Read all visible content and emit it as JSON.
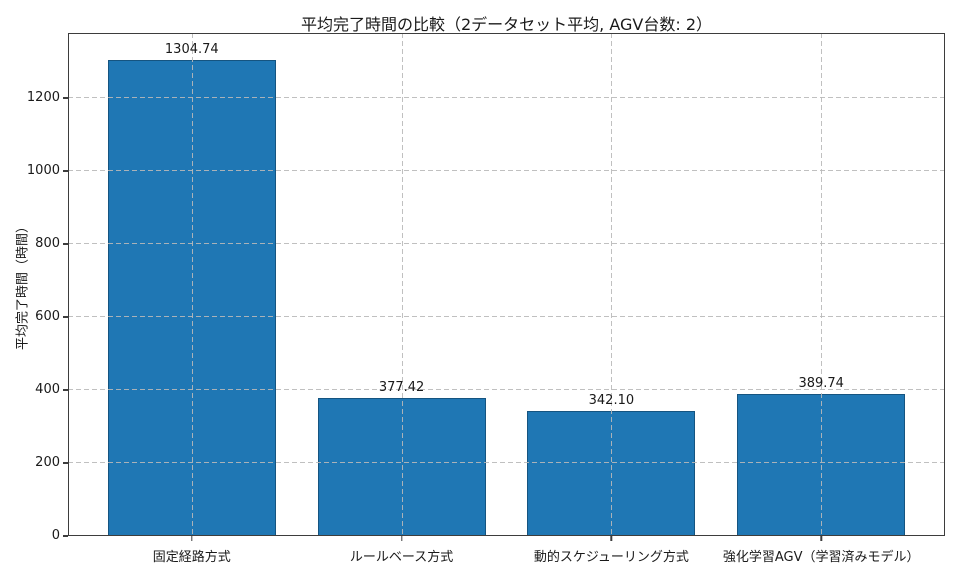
{
  "chart_data": {
    "type": "bar",
    "title": "平均完了時間の比較（2データセット平均, AGV台数: 2）",
    "xlabel": "",
    "ylabel": "平均完了時間（時間）",
    "categories": [
      "固定経路方式",
      "ルールベース方式",
      "動的スケジューリング方式",
      "強化学習AGV（学習済みモデル）"
    ],
    "values": [
      1304.74,
      377.42,
      342.1,
      389.74
    ],
    "value_labels": [
      "1304.74",
      "377.42",
      "342.10",
      "389.74"
    ],
    "yticks": [
      0,
      200,
      400,
      600,
      800,
      1000,
      1200
    ],
    "ylim": [
      0,
      1378
    ],
    "bar_width_fraction": 0.8,
    "grid": {
      "visible": true,
      "style": "dashed",
      "axes": "both",
      "above_bars": true
    },
    "legend": "none",
    "colors": {
      "bar": "#1f77b4",
      "grid": "#b9b9b9",
      "spine": "#3d3d3d",
      "text": "#1a1a1a",
      "background": "#ffffff"
    }
  }
}
